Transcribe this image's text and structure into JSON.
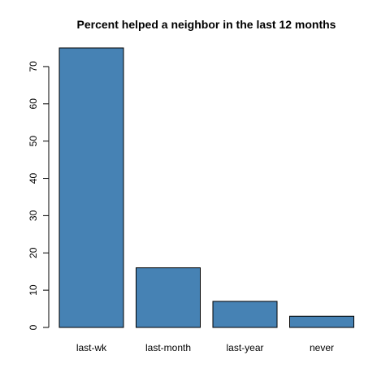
{
  "chart_data": {
    "type": "bar",
    "title": "Percent helped a neighbor in the last 12 months",
    "xlabel": "",
    "ylabel": "",
    "categories": [
      "last-wk",
      "last-month",
      "last-year",
      "never"
    ],
    "values": [
      75,
      16,
      7,
      3
    ],
    "ylim": [
      0,
      75
    ],
    "yticks": [
      0,
      10,
      20,
      30,
      40,
      50,
      60,
      70
    ],
    "grid": false,
    "legend": "none",
    "bar_color": "#4682B4",
    "bar_border_color": "#000000"
  }
}
